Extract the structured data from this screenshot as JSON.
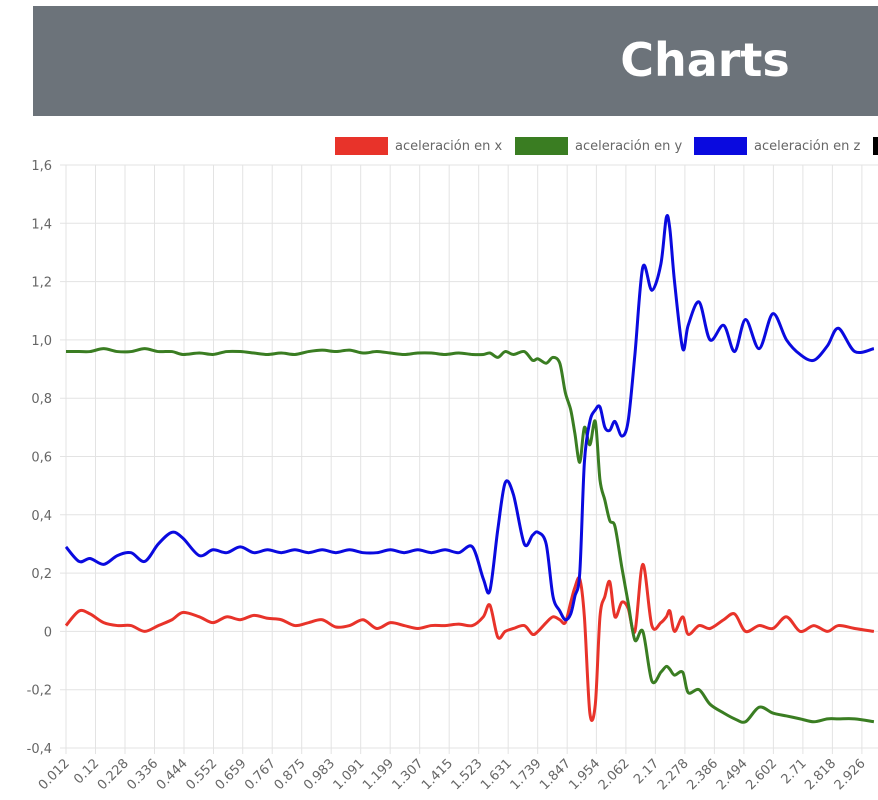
{
  "header": {
    "title": "Charts"
  },
  "chart_data": {
    "type": "line",
    "x": [
      0.012,
      0.06,
      0.1,
      0.15,
      0.2,
      0.25,
      0.3,
      0.35,
      0.4,
      0.44,
      0.5,
      0.55,
      0.6,
      0.65,
      0.7,
      0.75,
      0.8,
      0.85,
      0.9,
      0.95,
      1.0,
      1.05,
      1.1,
      1.15,
      1.2,
      1.25,
      1.3,
      1.35,
      1.4,
      1.45,
      1.5,
      1.54,
      1.564,
      1.593,
      1.62,
      1.65,
      1.69,
      1.72,
      1.74,
      1.77,
      1.795,
      1.82,
      1.84,
      1.86,
      1.875,
      1.893,
      1.91,
      1.93,
      1.95,
      1.967,
      1.985,
      2.003,
      2.022,
      2.047,
      2.07,
      2.095,
      2.124,
      2.157,
      2.19,
      2.21,
      2.223,
      2.24,
      2.27,
      2.29,
      2.33,
      2.37,
      2.42,
      2.46,
      2.5,
      2.55,
      2.6,
      2.65,
      2.7,
      2.75,
      2.8,
      2.84,
      2.9,
      2.97
    ],
    "series": [
      {
        "name": "aceleración en x",
        "color": "#e8332a",
        "values": [
          0.02,
          0.07,
          0.06,
          0.03,
          0.02,
          0.02,
          0.0,
          0.02,
          0.04,
          0.065,
          0.05,
          0.03,
          0.05,
          0.04,
          0.055,
          0.045,
          0.04,
          0.02,
          0.03,
          0.04,
          0.015,
          0.02,
          0.04,
          0.01,
          0.03,
          0.02,
          0.01,
          0.02,
          0.02,
          0.025,
          0.02,
          0.05,
          0.09,
          -0.02,
          0.0,
          0.01,
          0.02,
          -0.01,
          0.0,
          0.03,
          0.05,
          0.04,
          0.03,
          0.1,
          0.15,
          0.18,
          0.05,
          -0.28,
          -0.25,
          0.05,
          0.12,
          0.17,
          0.05,
          0.1,
          0.08,
          0.0,
          0.23,
          0.02,
          0.03,
          0.05,
          0.07,
          0.0,
          0.05,
          -0.01,
          0.02,
          0.01,
          0.04,
          0.06,
          0.0,
          0.02,
          0.01,
          0.05,
          0.0,
          0.02,
          0.0,
          0.02,
          0.01,
          0.0
        ]
      },
      {
        "name": "aceleración en y",
        "color": "#3a7d22",
        "values": [
          0.96,
          0.96,
          0.96,
          0.97,
          0.96,
          0.96,
          0.97,
          0.96,
          0.96,
          0.95,
          0.955,
          0.95,
          0.96,
          0.96,
          0.955,
          0.95,
          0.955,
          0.95,
          0.96,
          0.965,
          0.96,
          0.965,
          0.955,
          0.96,
          0.955,
          0.95,
          0.955,
          0.955,
          0.95,
          0.955,
          0.95,
          0.95,
          0.955,
          0.94,
          0.96,
          0.95,
          0.96,
          0.93,
          0.935,
          0.92,
          0.94,
          0.92,
          0.82,
          0.76,
          0.68,
          0.58,
          0.7,
          0.64,
          0.72,
          0.52,
          0.45,
          0.38,
          0.36,
          0.22,
          0.1,
          -0.03,
          0.0,
          -0.17,
          -0.14,
          -0.12,
          -0.13,
          -0.15,
          -0.14,
          -0.21,
          -0.2,
          -0.25,
          -0.28,
          -0.3,
          -0.31,
          -0.26,
          -0.28,
          -0.29,
          -0.3,
          -0.31,
          -0.3,
          -0.3,
          -0.3,
          -0.31
        ]
      },
      {
        "name": "aceleración en z",
        "color": "#0a0adf",
        "values": [
          0.29,
          0.24,
          0.25,
          0.23,
          0.26,
          0.27,
          0.24,
          0.3,
          0.34,
          0.32,
          0.26,
          0.28,
          0.27,
          0.29,
          0.27,
          0.28,
          0.27,
          0.28,
          0.27,
          0.28,
          0.27,
          0.28,
          0.27,
          0.27,
          0.28,
          0.27,
          0.28,
          0.27,
          0.28,
          0.27,
          0.29,
          0.18,
          0.14,
          0.35,
          0.51,
          0.47,
          0.3,
          0.33,
          0.34,
          0.3,
          0.12,
          0.07,
          0.04,
          0.06,
          0.12,
          0.2,
          0.58,
          0.72,
          0.76,
          0.77,
          0.7,
          0.69,
          0.72,
          0.67,
          0.72,
          0.95,
          1.25,
          1.17,
          1.26,
          1.42,
          1.38,
          1.2,
          0.97,
          1.05,
          1.13,
          1.0,
          1.05,
          0.96,
          1.07,
          0.97,
          1.09,
          1.0,
          0.95,
          0.93,
          0.98,
          1.04,
          0.96,
          0.97
        ]
      }
    ],
    "xlim": [
      0.012,
      2.985
    ],
    "xticks": [
      0.012,
      0.12,
      0.228,
      0.336,
      0.444,
      0.552,
      0.659,
      0.767,
      0.875,
      0.983,
      1.091,
      1.199,
      1.307,
      1.415,
      1.523,
      1.631,
      1.739,
      1.847,
      1.954,
      2.062,
      2.17,
      2.278,
      2.386,
      2.494,
      2.602,
      2.71,
      2.818,
      2.926
    ],
    "ylim": [
      -0.4,
      1.6
    ],
    "yticks": [
      {
        "value": -0.4,
        "label": "-0,4"
      },
      {
        "value": -0.2,
        "label": "-0,2"
      },
      0,
      {
        "value": 0.2,
        "label": "0,2"
      },
      {
        "value": 0.4,
        "label": "0,4"
      },
      {
        "value": 0.6,
        "label": "0,6"
      },
      {
        "value": 0.8,
        "label": "0,8"
      },
      {
        "value": 1.0,
        "label": "1,0"
      },
      {
        "value": 1.2,
        "label": "1,2"
      },
      {
        "value": 1.4,
        "label": "1,4"
      },
      {
        "value": 1.6,
        "label": "1,6"
      }
    ],
    "grid": true,
    "legend": "top"
  }
}
